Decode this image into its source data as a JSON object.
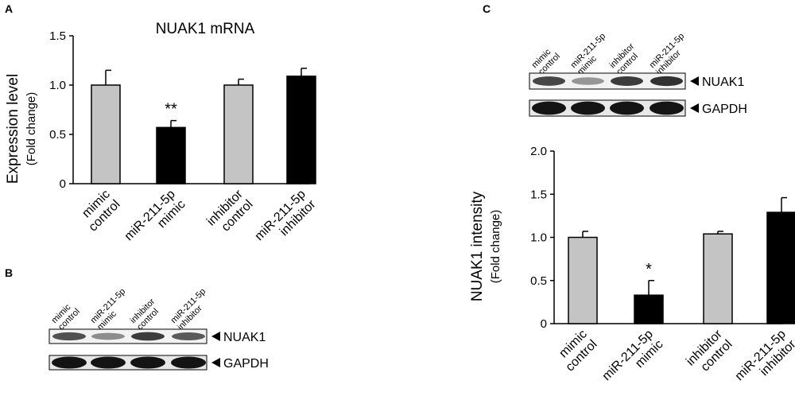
{
  "panels": {
    "a": "A",
    "b": "B",
    "c": "C"
  },
  "colors": {
    "control_bar": "#c4c4c4",
    "treated_bar": "#000000",
    "axis": "#000000"
  },
  "lane_labels": [
    [
      "mimic",
      "control"
    ],
    [
      "miR-211-5p",
      "mimic"
    ],
    [
      "inhibitor",
      "control"
    ],
    [
      "miR-211-5p",
      "inhibitor"
    ]
  ],
  "blot_b": {
    "bands": [
      "NUAK1",
      "GAPDH"
    ],
    "nuak1_intensity": [
      0.75,
      0.45,
      0.85,
      0.7
    ]
  },
  "blot_c": {
    "bands": [
      "NUAK1",
      "GAPDH"
    ],
    "nuak1_intensity": [
      0.8,
      0.4,
      0.85,
      0.9
    ]
  },
  "chart_data": [
    {
      "type": "bar",
      "panel": "A",
      "title": "NUAK1 mRNA",
      "ylabel": "Expression level",
      "ylabel_sub": "(Fold change)",
      "categories": [
        [
          "mimic",
          "control"
        ],
        [
          "miR-211-5p",
          "mimic"
        ],
        [
          "inhibitor",
          "control"
        ],
        [
          "miR-211-5p",
          "inhibitor"
        ]
      ],
      "values": [
        1.0,
        0.57,
        1.0,
        1.09
      ],
      "errors": [
        0.15,
        0.07,
        0.06,
        0.08
      ],
      "bar_colors": [
        "#c4c4c4",
        "#000000",
        "#c4c4c4",
        "#000000"
      ],
      "annotations": [
        "",
        "**",
        "",
        ""
      ],
      "ylim": [
        0,
        1.5
      ],
      "yticks": [
        "0",
        "0.5",
        "1.0",
        "1.5"
      ],
      "grid": false
    },
    {
      "type": "bar",
      "panel": "C",
      "title": "",
      "ylabel": "NUAK1 intensity",
      "ylabel_sub": "(Fold change)",
      "categories": [
        [
          "mimic",
          "control"
        ],
        [
          "miR-211-5p",
          "mimic"
        ],
        [
          "inhibitor",
          "control"
        ],
        [
          "miR-211-5p",
          "inhibitor"
        ]
      ],
      "values": [
        1.0,
        0.33,
        1.04,
        1.29
      ],
      "errors": [
        0.07,
        0.17,
        0.03,
        0.17
      ],
      "bar_colors": [
        "#c4c4c4",
        "#000000",
        "#c4c4c4",
        "#000000"
      ],
      "annotations": [
        "",
        "*",
        "",
        ""
      ],
      "ylim": [
        0,
        2.0
      ],
      "yticks": [
        "0",
        "0.5",
        "1.0",
        "1.5",
        "2.0"
      ],
      "grid": false
    }
  ]
}
